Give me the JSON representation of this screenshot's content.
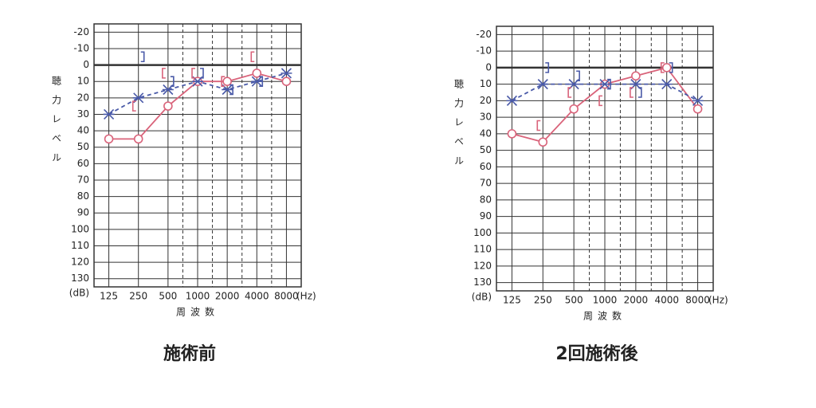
{
  "chart_data": [
    {
      "type": "line",
      "title": "施術前",
      "x_label": "周波数",
      "x_unit": "(Hz)",
      "y_label": "聴力レベル",
      "y_unit": "(dB)",
      "categories": [
        "125",
        "250",
        "500",
        "1000",
        "2000",
        "4000",
        "8000"
      ],
      "ylim": [
        135,
        -25
      ],
      "yticks": [
        -20,
        -10,
        0,
        10,
        20,
        30,
        40,
        50,
        60,
        70,
        80,
        90,
        100,
        110,
        120,
        130
      ],
      "grid": true,
      "series": [
        {
          "color": "#d9637a",
          "marker": "o",
          "line": "solid",
          "values": [
            45,
            45,
            25,
            10,
            10,
            5,
            10
          ]
        },
        {
          "color": "#4a5aa8",
          "marker": "x",
          "line": "dashed",
          "values": [
            30,
            20,
            15,
            10,
            15,
            10,
            5
          ]
        },
        {
          "color": "#d9637a",
          "marker": "[",
          "line": "none",
          "values": [
            null,
            25,
            5,
            5,
            10,
            -5,
            null
          ]
        },
        {
          "color": "#4a5aa8",
          "marker": "]",
          "line": "none",
          "values": [
            null,
            -5,
            10,
            5,
            15,
            10,
            null
          ]
        }
      ]
    },
    {
      "type": "line",
      "title": "2回施術後",
      "x_label": "周波数",
      "x_unit": "(Hz)",
      "y_label": "聴力レベル",
      "y_unit": "(dB)",
      "categories": [
        "125",
        "250",
        "500",
        "1000",
        "2000",
        "4000",
        "8000"
      ],
      "ylim": [
        135,
        -25
      ],
      "yticks": [
        -20,
        -10,
        0,
        10,
        20,
        30,
        40,
        50,
        60,
        70,
        80,
        90,
        100,
        110,
        120,
        130
      ],
      "grid": true,
      "series": [
        {
          "color": "#d9637a",
          "marker": "o",
          "line": "solid",
          "values": [
            40,
            45,
            25,
            10,
            5,
            0,
            25
          ]
        },
        {
          "color": "#4a5aa8",
          "marker": "x",
          "line": "dashed",
          "values": [
            20,
            10,
            10,
            10,
            10,
            10,
            20
          ]
        },
        {
          "color": "#d9637a",
          "marker": "[",
          "line": "none",
          "values": [
            null,
            35,
            15,
            20,
            15,
            0,
            null
          ]
        },
        {
          "color": "#4a5aa8",
          "marker": "]",
          "line": "none",
          "values": [
            null,
            0,
            5,
            10,
            15,
            0,
            null
          ]
        }
      ]
    }
  ]
}
